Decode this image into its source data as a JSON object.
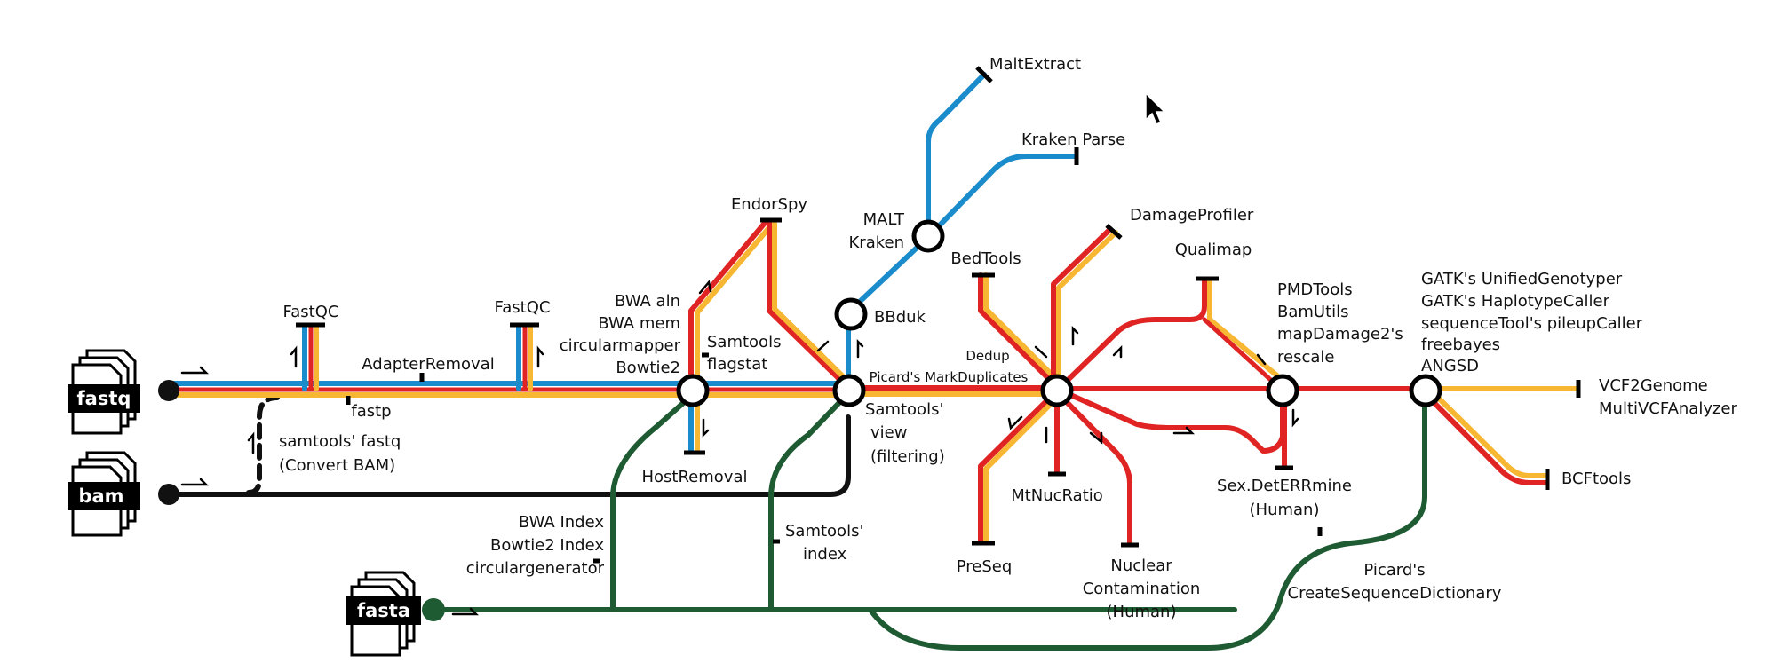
{
  "colors": {
    "blue": "#1b8ccb",
    "orange": "#f7b733",
    "red": "#e02424",
    "green": "#1e5b32",
    "black": "#111111"
  },
  "inputs": {
    "fastq": "fastq",
    "bam": "bam",
    "fasta": "fasta"
  },
  "labels": {
    "fastqc1": "FastQC",
    "fastqc2": "FastQC",
    "adapter_removal": "AdapterRemoval",
    "fastp": "fastp",
    "samtools_fastq_1": "samtools' fastq",
    "samtools_fastq_2": "(Convert BAM)",
    "mapper_1": "BWA aln",
    "mapper_2": "BWA mem",
    "mapper_3": "circularmapper",
    "mapper_4": "Bowtie2",
    "flagstat_1": "Samtools",
    "flagstat_2": "flagstat",
    "host_removal": "HostRemoval",
    "endorspy": "EndorSpy",
    "bbduk": "BBduk",
    "malt_1": "MALT",
    "malt_2": "Kraken",
    "malt_extract": "MaltExtract",
    "kraken_parse": "Kraken Parse",
    "view_1": "Samtools'",
    "view_2": "view",
    "view_3": "(filtering)",
    "dedup_1": "Dedup",
    "dedup_2": "Picard's MarkDuplicates",
    "bedtools": "BedTools",
    "damageprofiler": "DamageProfiler",
    "qualimap": "Qualimap",
    "preseq": "PreSeq",
    "mtnucratio": "MtNucRatio",
    "nuclear_1": "Nuclear",
    "nuclear_2": "Contamination",
    "nuclear_3": "(Human)",
    "pmd_1": "PMDTools",
    "pmd_2": "BamUtils",
    "pmd_3": "mapDamage2's",
    "pmd_4": "rescale",
    "sex_1": "Sex.DetERRmine",
    "sex_2": "(Human)",
    "genotyper_1": "GATK's UnifiedGenotyper",
    "genotyper_2": "GATK's HaplotypeCaller",
    "genotyper_3": "sequenceTool's pileupCaller",
    "genotyper_4": "freebayes",
    "genotyper_5": "ANGSD",
    "vcf_1": "VCF2Genome",
    "vcf_2": "MultiVCFAnalyzer",
    "bcftools": "BCFtools",
    "index_1": "BWA Index",
    "index_2": "Bowtie2 Index",
    "index_3": "circulargenerator",
    "samtools_index_1": "Samtools'",
    "samtools_index_2": "index",
    "seqdict_1": "Picard's",
    "seqdict_2": "CreateSequenceDictionary"
  }
}
